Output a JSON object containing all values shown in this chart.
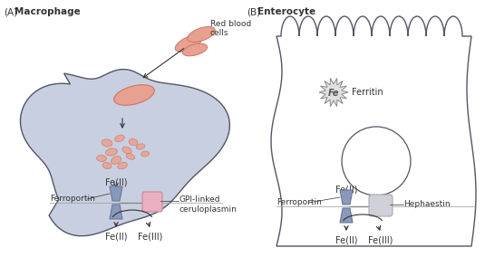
{
  "title_A": "(A)",
  "label_A": "Macrophage",
  "title_B": "(B)",
  "label_B": "Enterocyte",
  "bg_color": "#ffffff",
  "macrophage_fill": "#c8cfe0",
  "macrophage_fill2": "#d8dff0",
  "macrophage_edge": "#555566",
  "rbc_fill": "#e8a090",
  "rbc_edge": "#cc7766",
  "heme_fill": "#e8a090",
  "ferroportin_color": "#8899bb",
  "ferroportin_edge": "#667799",
  "ceruloplasmin_color": "#e8b0c0",
  "ceruloplasmin_edge": "#cc8899",
  "hephaestin_color": "#d0d0d8",
  "hephaestin_edge": "#aaaaaa",
  "ferritin_fill": "#e0e0e0",
  "ferritin_edge": "#888888",
  "text_color": "#333333",
  "arrow_color": "#333333",
  "label_ferroportin": "Ferroportin",
  "label_ceruloplasmin": "GPI-linked\nceruloplasmin",
  "label_hephaestin": "Hephaestin",
  "label_ferritin": "Ferritin",
  "label_rbc": "Red blood\ncells",
  "label_fe2_mac_top": "Fe(II)",
  "label_fe2_mac_bot": "Fe(II)",
  "label_fe3_mac": "Fe(III)",
  "label_fe2_ent_top": "Fe(II)",
  "label_fe2_ent_bot": "Fe(II)",
  "label_fe3_ent": "Fe(III)",
  "label_fe_ferritin": "Fe"
}
